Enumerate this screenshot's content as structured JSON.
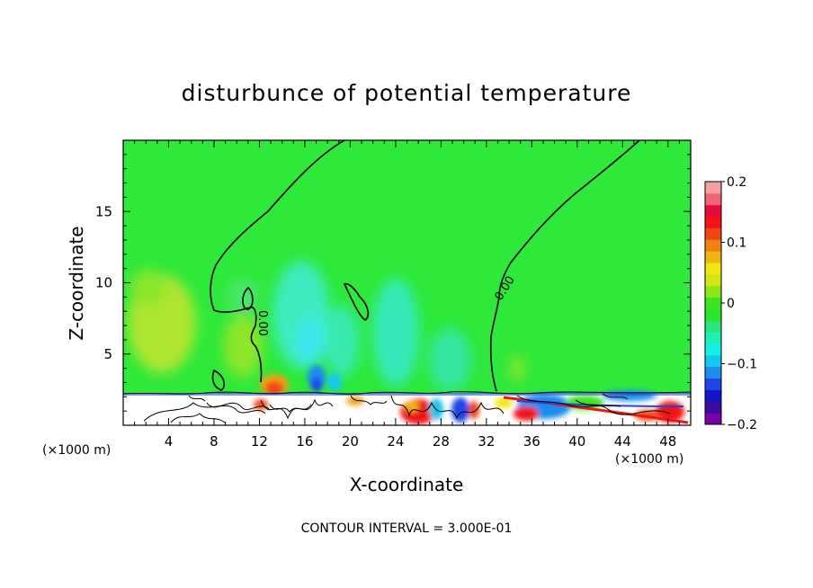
{
  "chart_data": {
    "type": "heatmap",
    "title": "disturbunce of potential temperature",
    "xlabel": "X-coordinate",
    "ylabel": "Z-coordinate",
    "x_unit": "(×1000 m)",
    "x_unit_right": "(×1000 m)",
    "xlim": [
      0,
      50
    ],
    "ylim": [
      0,
      20
    ],
    "xticks": [
      "4",
      "8",
      "12",
      "16",
      "20",
      "24",
      "28",
      "32",
      "36",
      "40",
      "44",
      "48"
    ],
    "xtick_values": [
      4,
      8,
      12,
      16,
      20,
      24,
      28,
      32,
      36,
      40,
      44,
      48
    ],
    "yticks": [
      "5",
      "10",
      "15"
    ],
    "ytick_values": [
      5,
      10,
      15
    ],
    "colorbar": {
      "range": [
        -0.2,
        0.2
      ],
      "labels": [
        "0.2",
        "0.1",
        "0",
        "−0.1",
        "−0.2"
      ],
      "label_values": [
        0.2,
        0.1,
        0,
        -0.1,
        -0.2
      ],
      "colors": [
        "#7a00a8",
        "#3d0aa0",
        "#1414c8",
        "#1e46e6",
        "#1e8cf0",
        "#14c8f0",
        "#14f0e6",
        "#1ef0b4",
        "#28e678",
        "#28e628",
        "#3ce61e",
        "#8ce614",
        "#d2e614",
        "#f0e614",
        "#f0b414",
        "#f08214",
        "#f04614",
        "#f01414",
        "#e60a3c",
        "#f06478",
        "#f5a0a0"
      ]
    },
    "contour_labels": [
      "0.00",
      "0.00"
    ],
    "footnote": "CONTOUR INTERVAL = 3.000E-01"
  }
}
